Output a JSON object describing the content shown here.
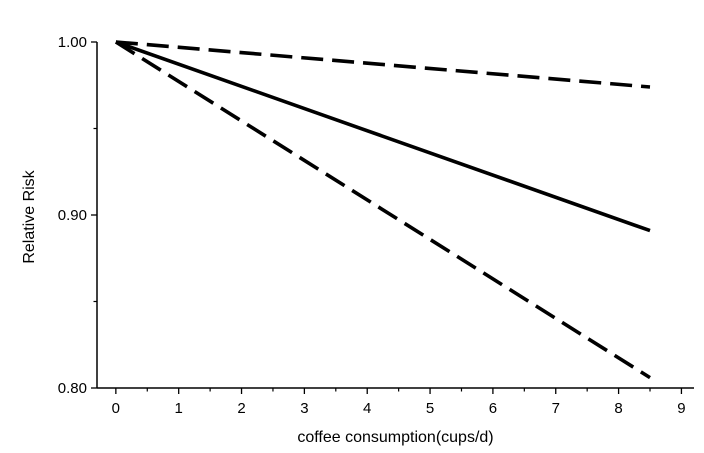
{
  "chart_data": {
    "type": "line",
    "xlabel": "coffee consumption(cups/d)",
    "ylabel": "Relative Risk",
    "xlim": [
      -0.3,
      9.2
    ],
    "ylim": [
      0.8,
      1.0
    ],
    "x_ticks": [
      0,
      1,
      2,
      3,
      4,
      5,
      6,
      7,
      8,
      9
    ],
    "x_tick_labels": [
      "0",
      "1",
      "2",
      "3",
      "4",
      "5",
      "6",
      "7",
      "8",
      "9"
    ],
    "y_major_ticks": [
      0.8,
      0.9,
      1.0
    ],
    "y_tick_labels": [
      "0.80",
      "0.90",
      "1.00"
    ],
    "y_minor_ticks": [
      0.85,
      0.95
    ],
    "grid": false,
    "legend": "none",
    "series": [
      {
        "style": "dashed",
        "color": "#000000",
        "x": [
          0,
          8.5
        ],
        "y": [
          1.0,
          0.974
        ]
      },
      {
        "style": "solid",
        "color": "#000000",
        "x": [
          0,
          8.5
        ],
        "y": [
          1.0,
          0.891
        ]
      },
      {
        "style": "dashed",
        "color": "#000000",
        "x": [
          0,
          8.5
        ],
        "y": [
          1.0,
          0.806
        ]
      }
    ]
  }
}
